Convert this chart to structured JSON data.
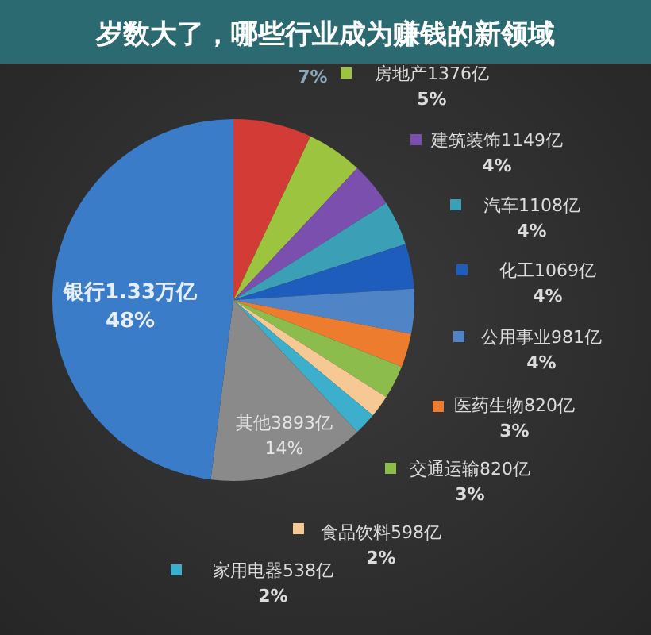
{
  "chart_data": {
    "type": "pie",
    "legend": "right",
    "title": "岁数大了，哪些行业成为赚钱的新领域",
    "categories": [
      null,
      "房地产1376亿",
      "建筑装饰1149亿",
      "汽车1108亿",
      "化工1069亿",
      "公用事业981亿",
      "医药生物820亿",
      "交通运输820亿",
      "食品饮料598亿",
      "家用电器538亿",
      "其他3893亿",
      "银行1.33万亿"
    ],
    "values": [
      7,
      5,
      4,
      4,
      4,
      4,
      3,
      3,
      2,
      2,
      14,
      48
    ],
    "value_labels": [
      "7%",
      "5%",
      "4%",
      "4%",
      "4%",
      "4%",
      "3%",
      "3%",
      "2%",
      "2%",
      "14%",
      "48%"
    ],
    "colors": [
      "#d33b36",
      "#9cc43e",
      "#7b4fae",
      "#3b9fb6",
      "#1f5dbd",
      "#4f85c6",
      "#ee7c2e",
      "#8bbc4c",
      "#f5c894",
      "#3bafcb",
      "#8a8a8a",
      "#3a7cc8"
    ]
  }
}
